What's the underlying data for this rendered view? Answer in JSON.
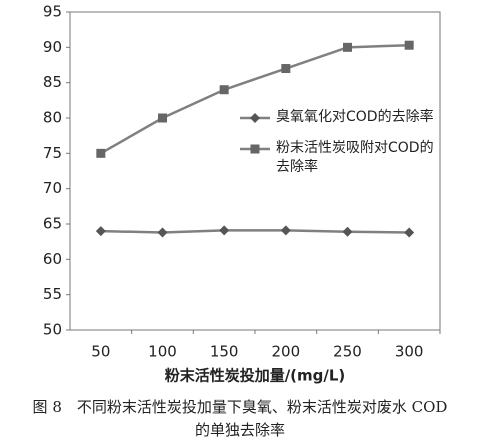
{
  "chart_data": {
    "type": "line",
    "categories": [
      "50",
      "100",
      "150",
      "200",
      "250",
      "300"
    ],
    "series": [
      {
        "name": "臭氧氧化对COD的去除率",
        "color": "#808080",
        "marker": "diamond",
        "values": [
          64.0,
          63.8,
          64.1,
          64.1,
          63.9,
          63.8
        ]
      },
      {
        "name": "粉末活性炭吸附对COD的去除率",
        "color": "#808080",
        "marker": "square",
        "values": [
          75,
          80,
          84,
          87,
          90,
          90.3
        ]
      }
    ],
    "ylim": [
      50,
      95
    ],
    "yticks": [
      50,
      55,
      60,
      65,
      70,
      75,
      80,
      85,
      90,
      95
    ],
    "grid": false,
    "x_label": "粉末活性炭投加量/(mg/L)",
    "caption": "图 8　不同粉末活性炭投加量下臭氧、粉末活性炭对废水 COD 的单独去除率"
  }
}
